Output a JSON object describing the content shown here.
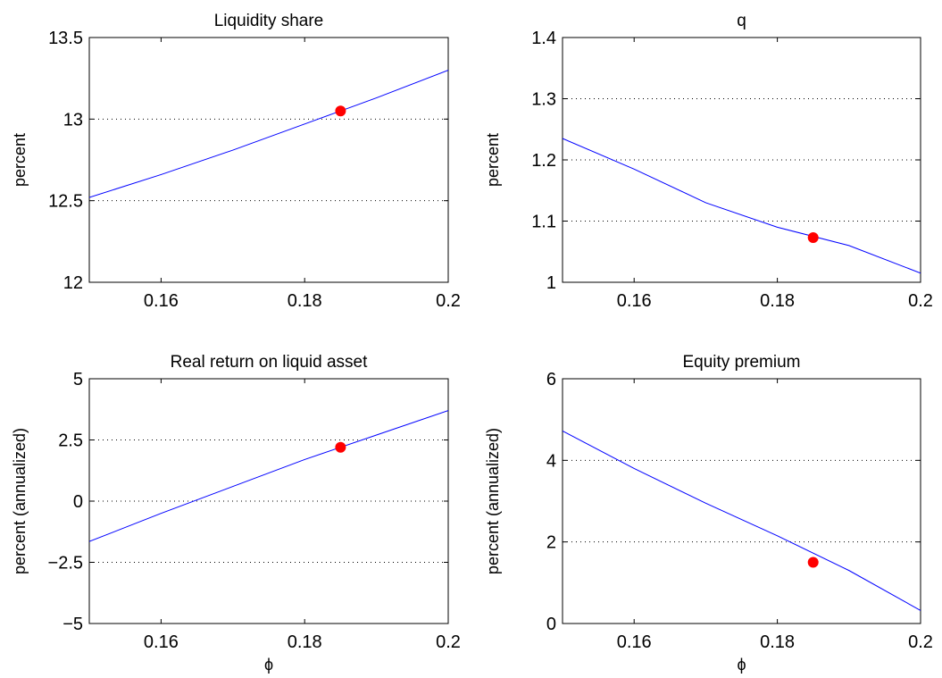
{
  "colors": {
    "series": "#0000ff",
    "marker": "#ff0000",
    "axes": "#000000"
  },
  "chart_data": [
    {
      "type": "line",
      "title": "Liquidity share",
      "xlabel": "",
      "ylabel": "percent",
      "xlim": [
        0.15,
        0.2
      ],
      "ylim": [
        12,
        13.5
      ],
      "xticks": [
        0.16,
        0.18,
        0.2
      ],
      "xtick_labels": [
        "0.16",
        "0.18",
        "0.2"
      ],
      "yticks": [
        12,
        12.5,
        13,
        13.5
      ],
      "ytick_labels": [
        "12",
        "12.5",
        "13",
        "13.5"
      ],
      "grid": "y-dotted",
      "series": [
        {
          "x": [
            0.15,
            0.16,
            0.17,
            0.18,
            0.19,
            0.2
          ],
          "values": [
            12.52,
            12.66,
            12.81,
            12.97,
            13.13,
            13.3
          ]
        }
      ],
      "marker": {
        "x": 0.185,
        "y": 13.05
      }
    },
    {
      "type": "line",
      "title": "q",
      "xlabel": "",
      "ylabel": "percent",
      "xlim": [
        0.15,
        0.2
      ],
      "ylim": [
        1,
        1.4
      ],
      "xticks": [
        0.16,
        0.18,
        0.2
      ],
      "xtick_labels": [
        "0.16",
        "0.18",
        "0.2"
      ],
      "yticks": [
        1,
        1.1,
        1.2,
        1.3,
        1.4
      ],
      "ytick_labels": [
        "1",
        "1.1",
        "1.2",
        "1.3",
        "1.4"
      ],
      "grid": "y-dotted",
      "series": [
        {
          "x": [
            0.15,
            0.16,
            0.17,
            0.18,
            0.19,
            0.2
          ],
          "values": [
            1.235,
            1.185,
            1.13,
            1.09,
            1.06,
            1.015
          ]
        }
      ],
      "marker": {
        "x": 0.185,
        "y": 1.073
      }
    },
    {
      "type": "line",
      "title": "Real return on liquid asset",
      "xlabel": "ϕ",
      "ylabel": "percent (annualized)",
      "xlim": [
        0.15,
        0.2
      ],
      "ylim": [
        -5,
        5
      ],
      "xticks": [
        0.16,
        0.18,
        0.2
      ],
      "xtick_labels": [
        "0.16",
        "0.18",
        "0.2"
      ],
      "yticks": [
        -5,
        -2.5,
        0,
        2.5,
        5
      ],
      "ytick_labels": [
        "−5",
        "−2.5",
        "0",
        "2.5",
        "5"
      ],
      "grid": "y-dotted",
      "series": [
        {
          "x": [
            0.15,
            0.16,
            0.17,
            0.18,
            0.19,
            0.2
          ],
          "values": [
            -1.65,
            -0.5,
            0.6,
            1.7,
            2.7,
            3.7
          ]
        }
      ],
      "marker": {
        "x": 0.185,
        "y": 2.2
      }
    },
    {
      "type": "line",
      "title": "Equity premium",
      "xlabel": "ϕ",
      "ylabel": "percent (annualized)",
      "xlim": [
        0.15,
        0.2
      ],
      "ylim": [
        0,
        6
      ],
      "xticks": [
        0.16,
        0.18,
        0.2
      ],
      "xtick_labels": [
        "0.16",
        "0.18",
        "0.2"
      ],
      "yticks": [
        0,
        2,
        4,
        6
      ],
      "ytick_labels": [
        "0",
        "2",
        "4",
        "6"
      ],
      "grid": "y-dotted",
      "series": [
        {
          "x": [
            0.15,
            0.16,
            0.17,
            0.18,
            0.19,
            0.2
          ],
          "values": [
            4.72,
            3.8,
            2.95,
            2.15,
            1.3,
            0.32
          ]
        }
      ],
      "marker": {
        "x": 0.185,
        "y": 1.5
      }
    }
  ]
}
